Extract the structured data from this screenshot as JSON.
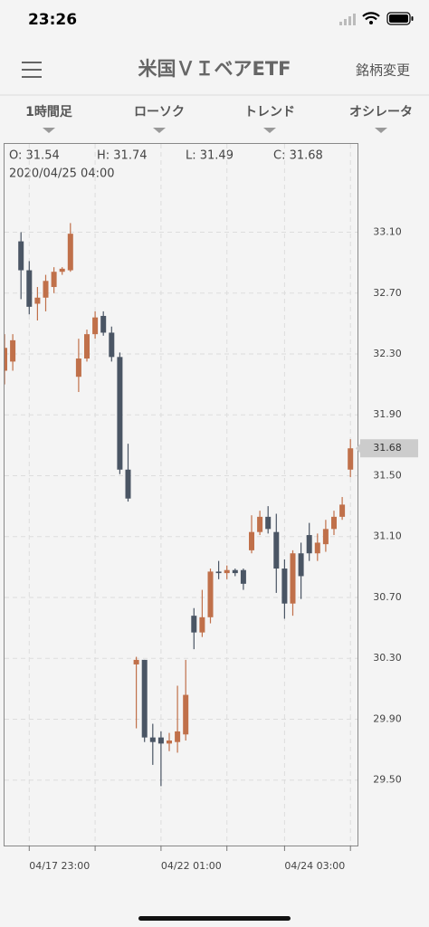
{
  "status_bar": {
    "time": "23:26"
  },
  "header": {
    "title": "米国ＶＩベアETF",
    "action": "銘柄変更"
  },
  "toolbar": {
    "items": [
      "1時間足",
      "ローソク",
      "トレンド",
      "オシレータ"
    ]
  },
  "info": {
    "open": "O: 31.54",
    "high": "H: 31.74",
    "low": "L: 31.49",
    "close": "C: 31.68",
    "datetime": "2020/04/25 04:00"
  },
  "chart_data": {
    "type": "candlestick",
    "categories": [
      null,
      null,
      null,
      "04/17 23:00",
      null,
      null,
      null,
      null,
      null,
      null,
      null,
      null,
      null,
      null,
      null,
      null,
      null,
      null,
      null,
      "04/22 01:00",
      null,
      null,
      null,
      null,
      null,
      null,
      null,
      null,
      null,
      null,
      null,
      null,
      null,
      null,
      "04/24 03:00",
      null,
      null,
      null,
      null,
      null,
      null,
      null,
      null
    ],
    "open": [
      32.19,
      32.25,
      33.04,
      32.85,
      32.63,
      32.67,
      32.74,
      32.84,
      32.85,
      32.15,
      32.27,
      32.43,
      32.55,
      32.44,
      32.28,
      31.54,
      30.26,
      30.29,
      29.78,
      29.78,
      29.74,
      29.75,
      29.8,
      30.58,
      30.47,
      30.57,
      30.87,
      30.86,
      30.88,
      30.88,
      31.01,
      31.13,
      31.23,
      31.13,
      30.89,
      30.66,
      30.99,
      31.11,
      30.99,
      31.05,
      31.15,
      31.23,
      31.54
    ],
    "high": [
      32.43,
      32.43,
      33.1,
      32.91,
      32.74,
      32.82,
      32.87,
      32.87,
      33.16,
      32.4,
      32.46,
      32.58,
      32.58,
      32.48,
      32.31,
      31.71,
      30.31,
      30.29,
      29.87,
      29.82,
      29.81,
      30.12,
      30.29,
      30.63,
      30.75,
      30.89,
      30.94,
      30.91,
      30.89,
      30.89,
      31.24,
      31.27,
      31.3,
      31.25,
      30.95,
      31.01,
      31.06,
      31.19,
      31.12,
      31.21,
      31.27,
      31.36,
      31.74
    ],
    "low": [
      32.1,
      32.19,
      32.66,
      32.56,
      32.52,
      32.58,
      32.7,
      32.82,
      32.84,
      32.05,
      32.25,
      32.4,
      32.42,
      32.25,
      31.51,
      31.33,
      29.84,
      29.75,
      29.6,
      29.46,
      29.69,
      29.68,
      29.76,
      30.36,
      30.44,
      30.53,
      30.82,
      30.82,
      30.84,
      30.75,
      30.99,
      31.11,
      31.12,
      30.73,
      30.56,
      30.58,
      30.69,
      30.94,
      30.94,
      31.0,
      31.11,
      31.21,
      31.49
    ],
    "close": [
      32.34,
      32.39,
      32.85,
      32.61,
      32.67,
      32.78,
      32.84,
      32.86,
      33.09,
      32.27,
      32.43,
      32.54,
      32.44,
      32.28,
      31.54,
      31.35,
      30.29,
      29.78,
      29.75,
      29.74,
      29.76,
      29.82,
      30.06,
      30.47,
      30.57,
      30.87,
      30.86,
      30.88,
      30.86,
      30.79,
      31.13,
      31.23,
      31.15,
      30.89,
      30.66,
      30.99,
      30.84,
      30.99,
      31.06,
      31.15,
      31.23,
      31.31,
      31.68
    ],
    "up_color": "#c0704a",
    "down_color": "#4a5564",
    "ylim": [
      29.07,
      33.68
    ],
    "yticks": [
      {
        "value": 29.5,
        "label": "29.50"
      },
      {
        "value": 29.9,
        "label": "29.90"
      },
      {
        "value": 30.3,
        "label": "30.30"
      },
      {
        "value": 30.7,
        "label": "30.70"
      },
      {
        "value": 31.1,
        "label": "31.10"
      },
      {
        "value": 31.5,
        "label": "31.50"
      },
      {
        "value": 31.9,
        "label": "31.90"
      },
      {
        "value": 32.3,
        "label": "32.30"
      },
      {
        "value": 32.7,
        "label": "32.70"
      },
      {
        "value": 33.1,
        "label": "33.10"
      }
    ],
    "grid": true
  }
}
